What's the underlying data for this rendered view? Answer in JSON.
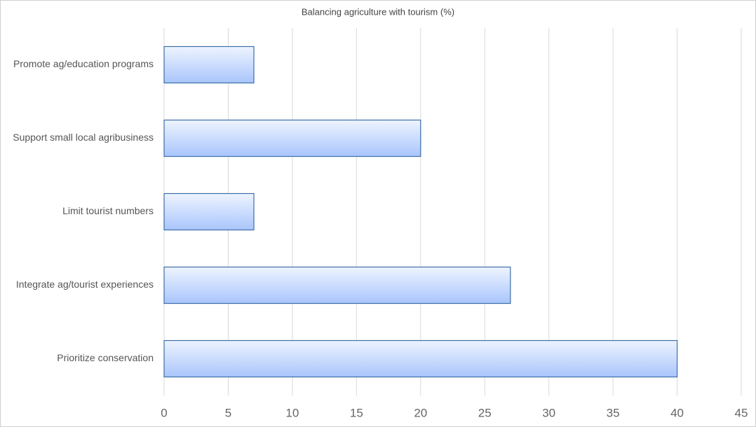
{
  "chart_data": {
    "type": "bar",
    "orientation": "horizontal",
    "title": "Balancing agriculture with tourism (%)",
    "categories": [
      "Promote ag/education programs",
      "Support small local agribusiness",
      "Limit tourist numbers",
      "Integrate ag/tourist experiences",
      "Prioritize conservation"
    ],
    "values": [
      7,
      20,
      7,
      27,
      40
    ],
    "color": "#a9c5fc",
    "xlim": [
      0,
      45
    ],
    "xticks": [
      0,
      5,
      10,
      15,
      20,
      25,
      30,
      35,
      40,
      45
    ],
    "grid": true
  }
}
